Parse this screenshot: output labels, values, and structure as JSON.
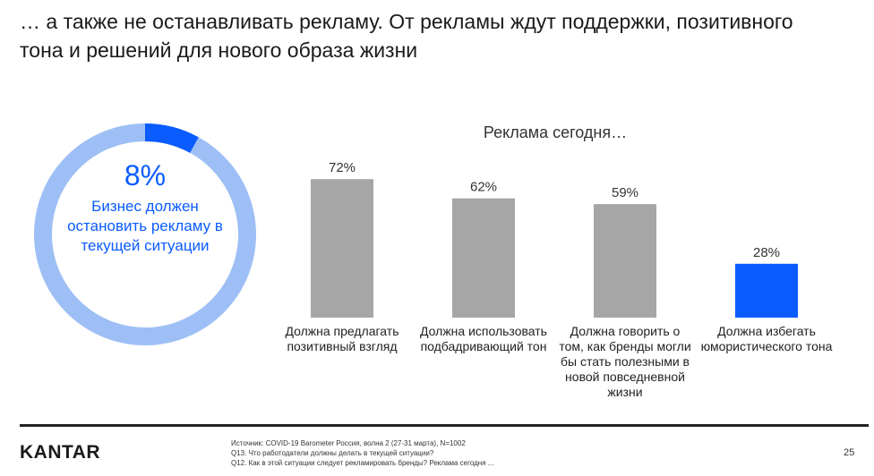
{
  "title": "… а также не останавливать рекламу. От рекламы ждут поддержки, позитивного тона и решений для нового образа жизни",
  "donut": {
    "percent_label": "8%",
    "value": 0.08,
    "label": "Бизнес должен остановить рекламу в текущей ситуации",
    "colors": {
      "highlight": "#0a5cff",
      "rest": "#9dbff5"
    }
  },
  "chart_data": {
    "type": "bar",
    "title": "Реклама сегодня…",
    "categories": [
      "Должна предлагать позитивный взгляд",
      "Должна использовать подбадривающий тон",
      "Должна говорить о том, как бренды могли бы стать полезными в новой повседневной жизни",
      "Должна избегать юмористического тона"
    ],
    "category_lines": [
      [
        "Должна предлагать",
        "позитивный взгляд"
      ],
      [
        "Должна использовать",
        "подбадривающий тон"
      ],
      [
        "Должна говорить о",
        "том, как бренды могли",
        "бы стать полезными в",
        "новой повседневной",
        "жизни"
      ],
      [
        "Должна избегать",
        "юмористического тона"
      ]
    ],
    "values": [
      72,
      62,
      59,
      28
    ],
    "data_labels": [
      "72%",
      "62%",
      "59%",
      "28%"
    ],
    "ylim": [
      0,
      100
    ],
    "colors": [
      "#a6a6a6",
      "#a6a6a6",
      "#a6a6a6",
      "#0a5cff"
    ],
    "grid": false
  },
  "footer": {
    "logo": "KANTAR",
    "source_lines": [
      "Источник: COVID-19 Barometer Россия, волна 2 (27-31 марта), N=1002",
      "Q13. Что работодатели должны делать в текущей ситуации?",
      " Q12. Как в этой ситуации следует рекламировать бренды? Реклама сегодня ..."
    ],
    "page_number": "25"
  }
}
